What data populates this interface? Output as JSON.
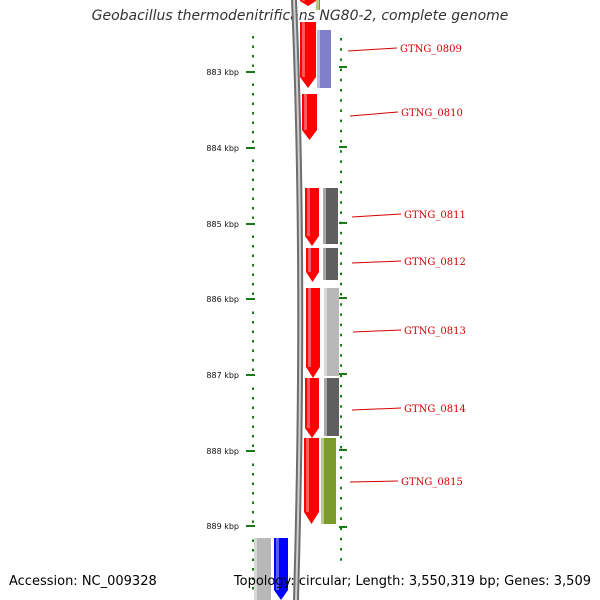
{
  "title": "Geobacillus thermodenitrificans NG80-2, complete genome",
  "accession": "Accession: NC_009328",
  "topology": "Topology: circular; Length: 3,550,319 bp; Genes: 3,509",
  "colors": {
    "gene_red": "#ff0000",
    "gene_blue": "#0000ff",
    "backbone": "#8a8a8a",
    "scale_green": "#1a7a1a",
    "label_red": "#d40000",
    "track_gray_dark": "#5f5f5f",
    "track_gray_light": "#b8b8b8",
    "track_purple": "#8080c8",
    "track_olive": "#7a9a2a"
  },
  "scale_labels": [
    "883 kbp",
    "884 kbp",
    "885 kbp",
    "886 kbp",
    "887 kbp",
    "888 kbp",
    "889 kbp"
  ],
  "gene_labels": [
    "GTNG_0809",
    "GTNG_0810",
    "GTNG_0811",
    "GTNG_0812",
    "GTNG_0813",
    "GTNG_0814",
    "GTNG_0815"
  ]
}
